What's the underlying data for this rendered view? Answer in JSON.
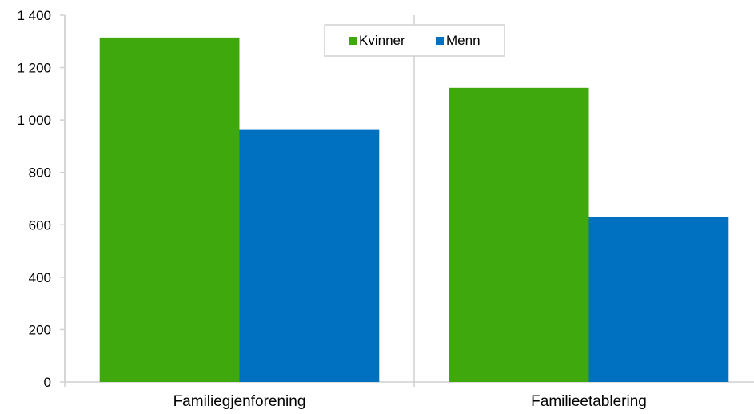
{
  "chart_data": {
    "type": "bar",
    "categories": [
      "Familiegjenforening",
      "Familieetablering"
    ],
    "series": [
      {
        "name": "Kvinner",
        "values": [
          1315,
          1123
        ],
        "color": "#3ea80c"
      },
      {
        "name": "Menn",
        "values": [
          962,
          630
        ],
        "color": "#0070c0"
      }
    ],
    "title": "",
    "xlabel": "",
    "ylabel": "",
    "ylim": [
      0,
      1400
    ],
    "yticks": [
      0,
      200,
      400,
      600,
      800,
      1000,
      1200,
      1400
    ],
    "ytick_labels": [
      "0",
      "200",
      "400",
      "600",
      "800",
      "1 000",
      "1 200",
      "1 400"
    ],
    "grid": false,
    "legend_position": "top-center"
  },
  "colors": {
    "axis": "#d0d0d0",
    "legend_border": "#d0d0d0"
  }
}
